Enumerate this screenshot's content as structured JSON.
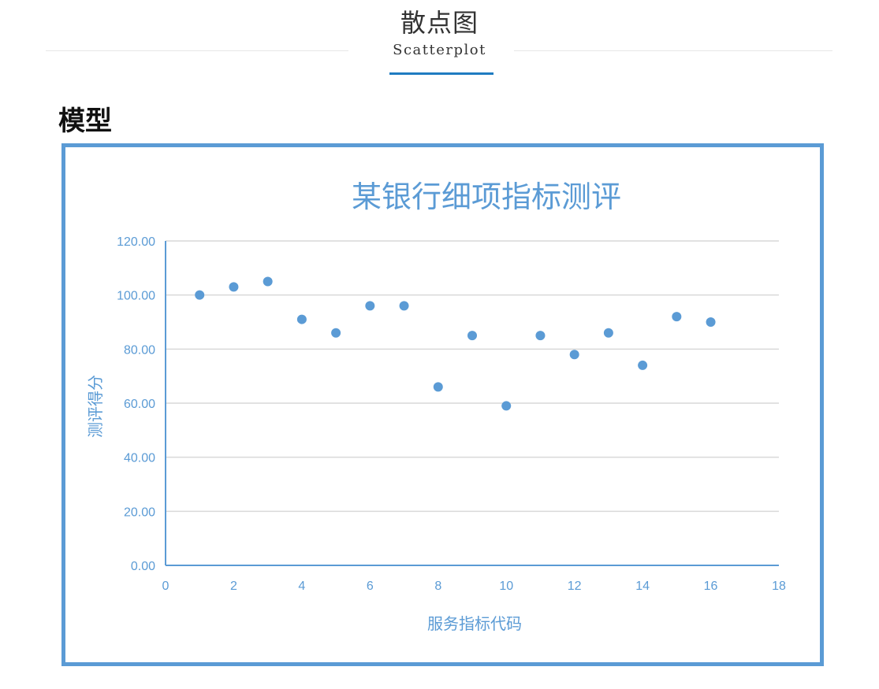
{
  "header": {
    "title": "散点图",
    "subtitle": "Scatterplot"
  },
  "section": {
    "title": "模型"
  },
  "colors": {
    "accent": "#1f7bc1",
    "chart_blue": "#5b9bd5",
    "grid": "#d9d9d9"
  },
  "chart_data": {
    "type": "scatter",
    "title": "某银行细项指标测评",
    "xlabel": "服务指标代码",
    "ylabel": "测评得分",
    "xlim": [
      0,
      18
    ],
    "ylim": [
      0,
      120
    ],
    "x_ticks": [
      "0",
      "2",
      "4",
      "6",
      "8",
      "10",
      "12",
      "14",
      "16",
      "18"
    ],
    "y_ticks": [
      "0.00",
      "20.00",
      "40.00",
      "60.00",
      "80.00",
      "100.00",
      "120.00"
    ],
    "grid": true,
    "legend": "none",
    "series": [
      {
        "x": [
          1,
          2,
          3,
          4,
          5,
          6,
          7,
          8,
          9,
          10,
          11,
          12,
          13,
          14,
          15,
          16
        ],
        "y": [
          100,
          103,
          105,
          91,
          86,
          96,
          96,
          66,
          85,
          59,
          85,
          78,
          86,
          74,
          92,
          90
        ]
      }
    ]
  }
}
